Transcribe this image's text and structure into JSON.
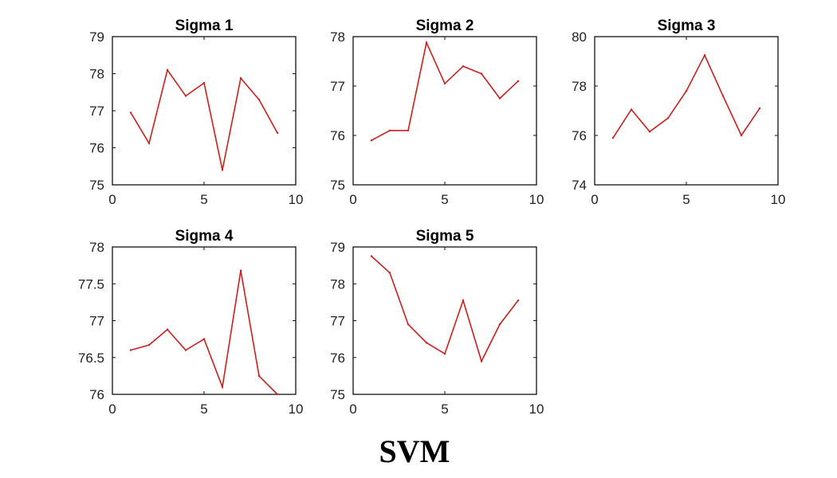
{
  "figure_caption": "SVM",
  "line_color": "#cc1f1f",
  "chart_data": [
    {
      "type": "line",
      "title": "Sigma 1",
      "xlim": [
        0,
        10
      ],
      "ylim": [
        75,
        79
      ],
      "xticks": [
        "0",
        "5",
        "10"
      ],
      "yticks": [
        "75",
        "76",
        "77",
        "78",
        "79"
      ],
      "x": [
        1,
        2,
        3,
        4,
        5,
        6,
        7,
        8,
        9
      ],
      "y": [
        76.95,
        76.12,
        78.1,
        77.4,
        77.75,
        75.4,
        77.88,
        77.3,
        76.4
      ]
    },
    {
      "type": "line",
      "title": "Sigma 2",
      "xlim": [
        0,
        10
      ],
      "ylim": [
        75,
        78
      ],
      "xticks": [
        "0",
        "5",
        "10"
      ],
      "yticks": [
        "75",
        "76",
        "77",
        "78"
      ],
      "x": [
        1,
        2,
        3,
        4,
        5,
        6,
        7,
        8,
        9
      ],
      "y": [
        75.9,
        76.1,
        76.1,
        77.88,
        77.05,
        77.4,
        77.25,
        76.75,
        77.1
      ]
    },
    {
      "type": "line",
      "title": "Sigma 3",
      "xlim": [
        0,
        10
      ],
      "ylim": [
        74,
        80
      ],
      "xticks": [
        "0",
        "5",
        "10"
      ],
      "yticks": [
        "74",
        "76",
        "78",
        "80"
      ],
      "x": [
        1,
        2,
        3,
        4,
        5,
        6,
        7,
        8,
        9
      ],
      "y": [
        75.9,
        77.05,
        76.15,
        76.7,
        77.8,
        79.25,
        77.6,
        76.0,
        77.1
      ]
    },
    {
      "type": "line",
      "title": "Sigma 4",
      "xlim": [
        0,
        10
      ],
      "ylim": [
        76,
        78
      ],
      "xticks": [
        "0",
        "5",
        "10"
      ],
      "yticks": [
        "76",
        "76.5",
        "77",
        "77.5",
        "78"
      ],
      "x": [
        1,
        2,
        3,
        4,
        5,
        6,
        7,
        8,
        9
      ],
      "y": [
        76.6,
        76.67,
        76.88,
        76.6,
        76.75,
        76.1,
        77.68,
        76.25,
        76.0
      ]
    },
    {
      "type": "line",
      "title": "Sigma 5",
      "xlim": [
        0,
        10
      ],
      "ylim": [
        75,
        79
      ],
      "xticks": [
        "0",
        "5",
        "10"
      ],
      "yticks": [
        "75",
        "76",
        "77",
        "78",
        "79"
      ],
      "x": [
        1,
        2,
        3,
        4,
        5,
        6,
        7,
        8,
        9
      ],
      "y": [
        78.75,
        78.3,
        76.9,
        76.4,
        76.1,
        77.55,
        75.9,
        76.9,
        77.55
      ]
    }
  ]
}
